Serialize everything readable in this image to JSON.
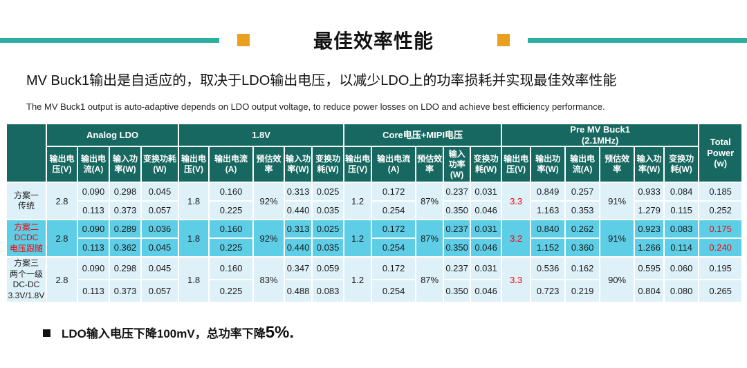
{
  "header": {
    "title": "最佳效率性能",
    "subtitle_zh": "MV Buck1输出是自适应的，取决于LDO输出电压，以减少LDO上的功率损耗并实现最佳效率性能",
    "subtitle_en": "The MV Buck1 output is auto-adaptive depends on LDO output voltage, to reduce power losses on LDO and achieve best efficiency performance."
  },
  "colors": {
    "header_bg": "#176861",
    "row_light": "#DFF1F8",
    "row_highlight": "#5ECDE6",
    "accent_red": "#FF0000",
    "divider_teal": "#2BADA0",
    "accent_orange": "#E9A01F"
  },
  "table": {
    "groups": [
      {
        "label": "Analog LDO",
        "span": 4
      },
      {
        "label": "1.8V",
        "span": 5
      },
      {
        "label": "Core电压+MIPI电压",
        "span": 5
      },
      {
        "label": "Pre MV Buck1\n(2.1MHz)",
        "span": 6
      },
      {
        "label": "Total\nPower\n(w)",
        "span": 1,
        "full_height": true
      }
    ],
    "columns": [
      "输出电压(V)",
      "输出电流(A)",
      "输入功率(W)",
      "变换功耗(W)",
      "输出电压(V)",
      "输出电流(A)",
      "预估效率",
      "输入功率(W)",
      "变换功耗(W)",
      "输出电压(V)",
      "输出电流(A)",
      "预估效率",
      "输入功率(W)",
      "变换功耗(W)",
      "输出电压(V)",
      "输出功率(W)",
      "输出电流(A)",
      "预估效率",
      "输入功率(W)",
      "变换功耗(W)"
    ],
    "rows": [
      {
        "label": "方案一\n传统",
        "label_red": false,
        "highlight": false,
        "analog_vout": "2.8",
        "v18_vout": "1.8",
        "v18_eff": "92%",
        "core_vout": "1.2",
        "core_eff": "87%",
        "pre_vout": "3.3",
        "pre_eff": "91%",
        "total_red": false,
        "sub_rows": [
          {
            "analog_iout": "0.090",
            "analog_pin": "0.298",
            "analog_ploss": "0.045",
            "v18_iout": "0.160",
            "v18_pin": "0.313",
            "v18_ploss": "0.025",
            "core_iout": "0.172",
            "core_pin": "0.237",
            "core_ploss": "0.031",
            "pre_pout": "0.849",
            "pre_iout": "0.257",
            "pre_pin": "0.933",
            "pre_ploss": "0.084",
            "total": "0.185"
          },
          {
            "analog_iout": "0.113",
            "analog_pin": "0.373",
            "analog_ploss": "0.057",
            "v18_iout": "0.225",
            "v18_pin": "0.440",
            "v18_ploss": "0.035",
            "core_iout": "0.254",
            "core_pin": "0.350",
            "core_ploss": "0.046",
            "pre_pout": "1.163",
            "pre_iout": "0.353",
            "pre_pin": "1.279",
            "pre_ploss": "0.115",
            "total": "0.252"
          }
        ]
      },
      {
        "label": "方案二\nDCDC\n电压跟随",
        "label_red": true,
        "highlight": true,
        "analog_vout": "2.8",
        "v18_vout": "1.8",
        "v18_eff": "92%",
        "core_vout": "1.2",
        "core_eff": "87%",
        "pre_vout": "3.2",
        "pre_eff": "91%",
        "total_red": true,
        "sub_rows": [
          {
            "analog_iout": "0.090",
            "analog_pin": "0.289",
            "analog_ploss": "0.036",
            "v18_iout": "0.160",
            "v18_pin": "0.313",
            "v18_ploss": "0.025",
            "core_iout": "0.172",
            "core_pin": "0.237",
            "core_ploss": "0.031",
            "pre_pout": "0.840",
            "pre_iout": "0.262",
            "pre_pin": "0.923",
            "pre_ploss": "0.083",
            "total": "0.175"
          },
          {
            "analog_iout": "0.113",
            "analog_pin": "0.362",
            "analog_ploss": "0.045",
            "v18_iout": "0.225",
            "v18_pin": "0.440",
            "v18_ploss": "0.035",
            "core_iout": "0.254",
            "core_pin": "0.350",
            "core_ploss": "0.046",
            "pre_pout": "1.152",
            "pre_iout": "0.360",
            "pre_pin": "1.266",
            "pre_ploss": "0.114",
            "total": "0.240"
          }
        ]
      },
      {
        "label": "方案三\n两个一级\nDC-DC\n3.3V/1.8V",
        "label_red": false,
        "highlight": false,
        "analog_vout": "2.8",
        "v18_vout": "1.8",
        "v18_eff": "83%",
        "core_vout": "1.2",
        "core_eff": "87%",
        "pre_vout": "3.3",
        "pre_eff": "90%",
        "total_red": false,
        "sub_rows": [
          {
            "analog_iout": "0.090",
            "analog_pin": "0.298",
            "analog_ploss": "0.045",
            "v18_iout": "0.160",
            "v18_pin": "0.347",
            "v18_ploss": "0.059",
            "core_iout": "0.172",
            "core_pin": "0.237",
            "core_ploss": "0.031",
            "pre_pout": "0.536",
            "pre_iout": "0.162",
            "pre_pin": "0.595",
            "pre_ploss": "0.060",
            "total": "0.195"
          },
          {
            "analog_iout": "0.113",
            "analog_pin": "0.373",
            "analog_ploss": "0.057",
            "v18_iout": "0.225",
            "v18_pin": "0.488",
            "v18_ploss": "0.083",
            "core_iout": "0.254",
            "core_pin": "0.350",
            "core_ploss": "0.046",
            "pre_pout": "0.723",
            "pre_iout": "0.219",
            "pre_pin": "0.804",
            "pre_ploss": "0.080",
            "total": "0.265"
          }
        ]
      }
    ]
  },
  "footnote": {
    "text": "LDO输入电压下降100mV，总功率下降",
    "emphasis": "5%."
  }
}
